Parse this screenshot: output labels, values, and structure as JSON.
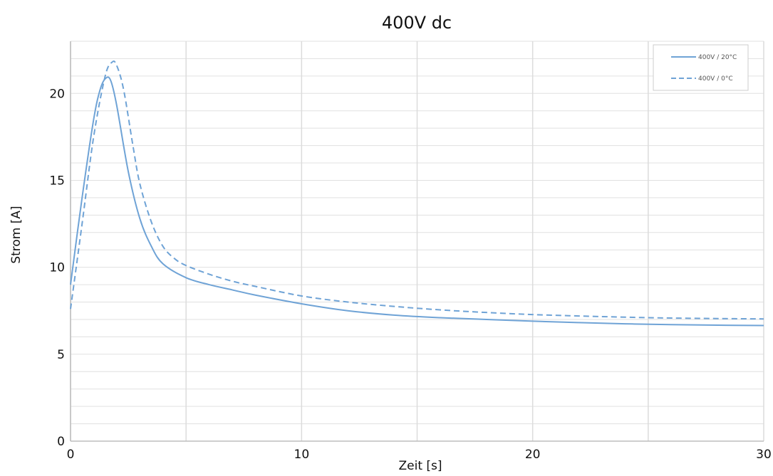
{
  "chart_data": {
    "type": "line",
    "title": "400V dc",
    "xlabel": "Zeit [s]",
    "ylabel": "Strom [A]",
    "xlim": [
      0,
      30
    ],
    "ylim": [
      0,
      23
    ],
    "x_ticks": [
      0,
      10,
      20,
      30
    ],
    "x_tick_labels": [
      "0",
      "10",
      "20",
      "30"
    ],
    "y_ticks": [
      0,
      5,
      10,
      15,
      20
    ],
    "y_tick_labels": [
      "0",
      "5",
      "10",
      "15",
      "20"
    ],
    "grid": true,
    "legend_position": "top-right",
    "series": [
      {
        "name": "400V / 20°C",
        "color": "#6fa3d6",
        "line_style": "solid",
        "x": [
          0,
          0.5,
          1.0,
          1.3,
          1.55,
          1.75,
          2.0,
          2.5,
          3.0,
          3.5,
          4.0,
          5.0,
          6.0,
          7.0,
          8.0,
          10.0,
          12.0,
          14.0,
          16.0,
          18.0,
          20.0,
          22.0,
          24.0,
          26.0,
          28.0,
          30.0
        ],
        "y": [
          9.0,
          14.0,
          18.5,
          20.3,
          20.9,
          20.7,
          19.3,
          15.5,
          12.8,
          11.2,
          10.2,
          9.4,
          9.0,
          8.7,
          8.4,
          7.9,
          7.5,
          7.25,
          7.1,
          7.0,
          6.9,
          6.82,
          6.75,
          6.7,
          6.67,
          6.65
        ]
      },
      {
        "name": "400V / 0°C",
        "color": "#6fa3d6",
        "line_style": "dashed",
        "x": [
          0,
          0.5,
          1.0,
          1.5,
          1.8,
          2.0,
          2.3,
          2.7,
          3.0,
          3.5,
          4.0,
          4.5,
          5.0,
          6.0,
          7.0,
          8.0,
          10.0,
          12.0,
          14.0,
          16.0,
          18.0,
          20.0,
          22.0,
          24.0,
          26.0,
          28.0,
          30.0
        ],
        "y": [
          7.6,
          12.5,
          17.5,
          21.0,
          21.8,
          21.6,
          20.2,
          17.0,
          14.8,
          12.6,
          11.2,
          10.5,
          10.1,
          9.6,
          9.2,
          8.9,
          8.35,
          8.0,
          7.75,
          7.55,
          7.4,
          7.28,
          7.2,
          7.13,
          7.08,
          7.05,
          7.03
        ]
      }
    ]
  }
}
